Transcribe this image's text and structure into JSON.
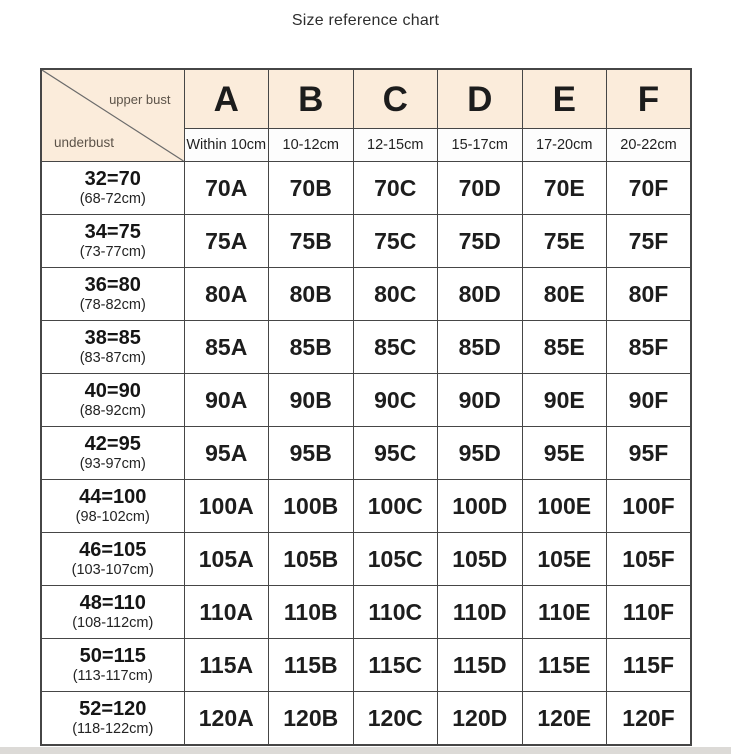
{
  "page": {
    "title": "Size reference chart"
  },
  "chart_data": {
    "type": "table",
    "title": "Size reference chart",
    "corner": {
      "top_right_label": "upper bust",
      "bottom_left_label": "underbust"
    },
    "columns": [
      {
        "cup": "A",
        "diff_range": "Within 10cm"
      },
      {
        "cup": "B",
        "diff_range": "10-12cm"
      },
      {
        "cup": "C",
        "diff_range": "12-15cm"
      },
      {
        "cup": "D",
        "diff_range": "15-17cm"
      },
      {
        "cup": "E",
        "diff_range": "17-20cm"
      },
      {
        "cup": "F",
        "diff_range": "20-22cm"
      }
    ],
    "rows": [
      {
        "size": "32=70",
        "underbust_range": "(68-72cm)",
        "cells": [
          "70A",
          "70B",
          "70C",
          "70D",
          "70E",
          "70F"
        ]
      },
      {
        "size": "34=75",
        "underbust_range": "(73-77cm)",
        "cells": [
          "75A",
          "75B",
          "75C",
          "75D",
          "75E",
          "75F"
        ]
      },
      {
        "size": "36=80",
        "underbust_range": "(78-82cm)",
        "cells": [
          "80A",
          "80B",
          "80C",
          "80D",
          "80E",
          "80F"
        ]
      },
      {
        "size": "38=85",
        "underbust_range": "(83-87cm)",
        "cells": [
          "85A",
          "85B",
          "85C",
          "85D",
          "85E",
          "85F"
        ]
      },
      {
        "size": "40=90",
        "underbust_range": "(88-92cm)",
        "cells": [
          "90A",
          "90B",
          "90C",
          "90D",
          "90E",
          "90F"
        ]
      },
      {
        "size": "42=95",
        "underbust_range": "(93-97cm)",
        "cells": [
          "95A",
          "95B",
          "95C",
          "95D",
          "95E",
          "95F"
        ]
      },
      {
        "size": "44=100",
        "underbust_range": "(98-102cm)",
        "cells": [
          "100A",
          "100B",
          "100C",
          "100D",
          "100E",
          "100F"
        ]
      },
      {
        "size": "46=105",
        "underbust_range": "(103-107cm)",
        "cells": [
          "105A",
          "105B",
          "105C",
          "105D",
          "105E",
          "105F"
        ]
      },
      {
        "size": "48=110",
        "underbust_range": "(108-112cm)",
        "cells": [
          "110A",
          "110B",
          "110C",
          "110D",
          "110E",
          "110F"
        ]
      },
      {
        "size": "50=115",
        "underbust_range": "(113-117cm)",
        "cells": [
          "115A",
          "115B",
          "115C",
          "115D",
          "115E",
          "115F"
        ]
      },
      {
        "size": "52=120",
        "underbust_range": "(118-122cm)",
        "cells": [
          "120A",
          "120B",
          "120C",
          "120D",
          "120E",
          "120F"
        ]
      }
    ]
  },
  "colors": {
    "header_bg": "#fbecdb",
    "subheader_bg": "#fdfdfd",
    "cell_bg": "#ffffff",
    "border": "#464646",
    "title_text": "#2e2e2e",
    "cell_text": "#1d1d1d",
    "corner_label_text": "#5c5349"
  }
}
